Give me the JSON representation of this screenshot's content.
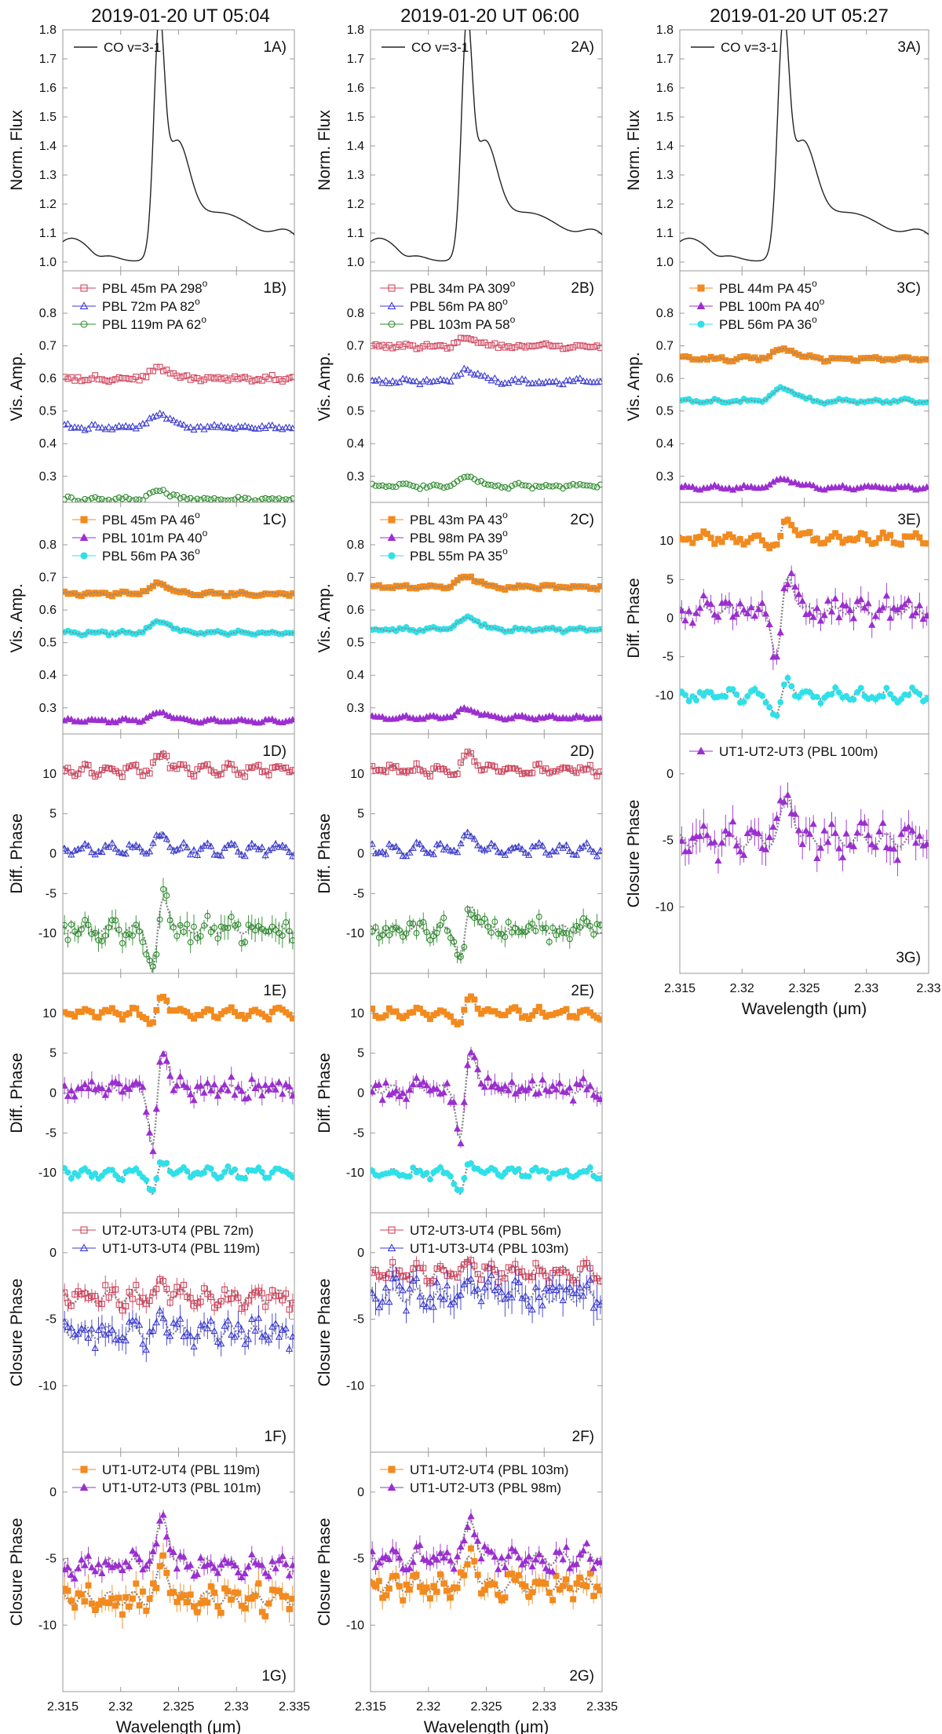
{
  "figure": {
    "col_titles": [
      "2019-01-20 UT 05:04",
      "2019-01-20 UT 06:00",
      "2019-01-20 UT 05:27"
    ],
    "xlabel": "Wavelength (μm)",
    "xticks": [
      "2.315",
      "2.32",
      "2.325",
      "2.33",
      "2.335"
    ],
    "xticks_col3": [
      "2.315",
      "2.32",
      "2.325",
      "2.33",
      "2.33"
    ]
  },
  "chart_data": [
    {
      "id": "1A",
      "type": "line",
      "ylabel": "Norm. Flux",
      "ylim": [
        0.97,
        1.8
      ],
      "yticks": [
        1.0,
        1.1,
        1.2,
        1.3,
        1.4,
        1.5,
        1.6,
        1.7,
        1.8
      ],
      "series": [
        {
          "name": "CO v=3-1",
          "color": "#222222",
          "marker": "none",
          "profile": "flux",
          "base": 1.0,
          "offset": 0
        }
      ]
    },
    {
      "id": "1B",
      "type": "scatter",
      "ylabel": "Vis. Amp.",
      "ylim": [
        0.22,
        0.93
      ],
      "yticks": [
        0.3,
        0.4,
        0.5,
        0.6,
        0.7,
        0.8
      ],
      "series": [
        {
          "name": "PBL 45m PA 298°",
          "color": "#d0455d",
          "marker": "open-square",
          "base": 0.6,
          "amp": 0.03,
          "noise": 0.006
        },
        {
          "name": "PBL 72m PA 82°",
          "color": "#3b3bd0",
          "marker": "open-triangle",
          "base": 0.45,
          "amp": 0.04,
          "noise": 0.006
        },
        {
          "name": "PBL 119m PA 62°",
          "color": "#2e8b2e",
          "marker": "open-circle",
          "base": 0.23,
          "amp": 0.025,
          "noise": 0.005
        }
      ]
    },
    {
      "id": "1C",
      "type": "scatter",
      "ylabel": "Vis. Amp.",
      "ylim": [
        0.22,
        0.93
      ],
      "yticks": [
        0.3,
        0.4,
        0.5,
        0.6,
        0.7,
        0.8
      ],
      "series": [
        {
          "name": "PBL 45m PA 46°",
          "color": "#f28a1e",
          "marker": "filled-square",
          "base": 0.65,
          "amp": 0.03,
          "noise": 0.004
        },
        {
          "name": "PBL 101m PA 40°",
          "color": "#9b2fcf",
          "marker": "filled-triangle",
          "base": 0.26,
          "amp": 0.025,
          "noise": 0.003
        },
        {
          "name": "PBL 56m PA 36°",
          "color": "#2fe0e8",
          "marker": "filled-circle",
          "base": 0.53,
          "amp": 0.035,
          "noise": 0.004
        }
      ]
    },
    {
      "id": "1D",
      "type": "scatter",
      "ylabel": "Diff. Phase",
      "ylim": [
        -15,
        15
      ],
      "yticks": [
        -10,
        -5,
        0,
        5,
        10
      ],
      "series": [
        {
          "name": "",
          "color": "#d0455d",
          "marker": "open-square",
          "base": 10.5,
          "dip": 0,
          "peak": 2,
          "noise": 0.4
        },
        {
          "name": "",
          "color": "#3b3bd0",
          "marker": "open-triangle",
          "base": 0.5,
          "dip": 0,
          "peak": 2,
          "noise": 0.4
        },
        {
          "name": "",
          "color": "#2e8b2e",
          "marker": "open-circle",
          "base": -9.5,
          "dip": -6,
          "peak": 4,
          "noise": 1.2
        }
      ]
    },
    {
      "id": "1E",
      "type": "scatter",
      "ylabel": "Diff. Phase",
      "ylim": [
        -15,
        15
      ],
      "yticks": [
        -10,
        -5,
        0,
        5,
        10
      ],
      "series": [
        {
          "name": "",
          "color": "#f28a1e",
          "marker": "filled-square",
          "base": 10,
          "dip": -1.5,
          "peak": 2,
          "noise": 0.3
        },
        {
          "name": "",
          "color": "#9b2fcf",
          "marker": "filled-triangle",
          "base": 0.5,
          "dip": -8,
          "peak": 5,
          "noise": 1.0
        },
        {
          "name": "",
          "color": "#2fe0e8",
          "marker": "filled-circle",
          "base": -10,
          "dip": -3,
          "peak": 1.5,
          "noise": 0.4
        }
      ]
    },
    {
      "id": "1F",
      "type": "scatter",
      "ylabel": "Closure Phase",
      "ylim": [
        -15,
        3
      ],
      "yticks": [
        -10,
        -5,
        0
      ],
      "series": [
        {
          "name": "UT2-UT3-UT4 (PBL 72m)",
          "color": "#d0455d",
          "marker": "open-square",
          "base": -3.3,
          "dip": 0,
          "peak": 0.8,
          "noise": 0.6
        },
        {
          "name": "UT1-UT3-UT4 (PBL 119m)",
          "color": "#3b3bd0",
          "marker": "open-triangle",
          "base": -6.0,
          "dip": 0,
          "peak": 1.0,
          "noise": 0.8
        }
      ]
    },
    {
      "id": "1G",
      "type": "scatter",
      "ylabel": "Closure Phase",
      "ylim": [
        -15,
        3
      ],
      "yticks": [
        -10,
        -5,
        0
      ],
      "series": [
        {
          "name": "UT1-UT2-UT4 (PBL 119m)",
          "color": "#f28a1e",
          "marker": "filled-square",
          "base": -8.0,
          "dip": 0,
          "peak": 2.5,
          "noise": 0.8
        },
        {
          "name": "UT1-UT2-UT3 (PBL 101m)",
          "color": "#9b2fcf",
          "marker": "filled-triangle",
          "base": -5.5,
          "dip": 0,
          "peak": 3.5,
          "noise": 0.6
        }
      ]
    },
    {
      "id": "2A",
      "type": "line",
      "ylabel": "Norm. Flux",
      "ylim": [
        0.97,
        1.8
      ],
      "yticks": [
        1.0,
        1.1,
        1.2,
        1.3,
        1.4,
        1.5,
        1.6,
        1.7,
        1.8
      ],
      "series": [
        {
          "name": "CO v=3-1",
          "color": "#222222",
          "marker": "none",
          "profile": "flux",
          "base": 1.0,
          "offset": 0
        }
      ]
    },
    {
      "id": "2B",
      "type": "scatter",
      "ylabel": "Vis. Amp.",
      "ylim": [
        0.22,
        0.93
      ],
      "yticks": [
        0.3,
        0.4,
        0.5,
        0.6,
        0.7,
        0.8
      ],
      "series": [
        {
          "name": "PBL 34m PA 309°",
          "color": "#d0455d",
          "marker": "open-square",
          "base": 0.7,
          "amp": 0.02,
          "noise": 0.006
        },
        {
          "name": "PBL 56m PA 80°",
          "color": "#3b3bd0",
          "marker": "open-triangle",
          "base": 0.59,
          "amp": 0.035,
          "noise": 0.006
        },
        {
          "name": "PBL 103m PA 58°",
          "color": "#2e8b2e",
          "marker": "open-circle",
          "base": 0.27,
          "amp": 0.03,
          "noise": 0.005
        }
      ]
    },
    {
      "id": "2C",
      "type": "scatter",
      "ylabel": "Vis. Amp.",
      "ylim": [
        0.22,
        0.93
      ],
      "yticks": [
        0.3,
        0.4,
        0.5,
        0.6,
        0.7,
        0.8
      ],
      "series": [
        {
          "name": "PBL 43m PA 43°",
          "color": "#f28a1e",
          "marker": "filled-square",
          "base": 0.67,
          "amp": 0.03,
          "noise": 0.004
        },
        {
          "name": "PBL 98m PA 39°",
          "color": "#9b2fcf",
          "marker": "filled-triangle",
          "base": 0.27,
          "amp": 0.025,
          "noise": 0.003
        },
        {
          "name": "PBL 55m PA 35°",
          "color": "#2fe0e8",
          "marker": "filled-circle",
          "base": 0.54,
          "amp": 0.035,
          "noise": 0.004
        }
      ]
    },
    {
      "id": "2D",
      "type": "scatter",
      "ylabel": "Diff. Phase",
      "ylim": [
        -15,
        15
      ],
      "yticks": [
        -10,
        -5,
        0,
        5,
        10
      ],
      "series": [
        {
          "name": "",
          "color": "#d0455d",
          "marker": "open-square",
          "base": 10.5,
          "dip": 0,
          "peak": 2,
          "noise": 0.4
        },
        {
          "name": "",
          "color": "#3b3bd0",
          "marker": "open-triangle",
          "base": 0.5,
          "dip": 0,
          "peak": 1.8,
          "noise": 0.4
        },
        {
          "name": "",
          "color": "#2e8b2e",
          "marker": "open-circle",
          "base": -9.5,
          "dip": -4.5,
          "peak": 3,
          "noise": 1.0
        }
      ]
    },
    {
      "id": "2E",
      "type": "scatter",
      "ylabel": "Diff. Phase",
      "ylim": [
        -15,
        15
      ],
      "yticks": [
        -10,
        -5,
        0,
        5,
        10
      ],
      "series": [
        {
          "name": "",
          "color": "#f28a1e",
          "marker": "filled-square",
          "base": 10,
          "dip": -1.5,
          "peak": 2,
          "noise": 0.3
        },
        {
          "name": "",
          "color": "#9b2fcf",
          "marker": "filled-triangle",
          "base": 0.5,
          "dip": -7,
          "peak": 5,
          "noise": 1.0
        },
        {
          "name": "",
          "color": "#2fe0e8",
          "marker": "filled-circle",
          "base": -10,
          "dip": -3,
          "peak": 1.5,
          "noise": 0.4
        }
      ]
    },
    {
      "id": "2F",
      "type": "scatter",
      "ylabel": "Closure Phase",
      "ylim": [
        -15,
        3
      ],
      "yticks": [
        -10,
        -5,
        0
      ],
      "series": [
        {
          "name": "UT2-UT3-UT4 (PBL 56m)",
          "color": "#d0455d",
          "marker": "open-square",
          "base": -1.5,
          "dip": 0,
          "peak": 0.6,
          "noise": 0.4
        },
        {
          "name": "UT1-UT3-UT4 (PBL 103m)",
          "color": "#3b3bd0",
          "marker": "open-triangle",
          "base": -3.2,
          "dip": 0,
          "peak": 1.0,
          "noise": 1.0
        }
      ]
    },
    {
      "id": "2G",
      "type": "scatter",
      "ylabel": "Closure Phase",
      "ylim": [
        -15,
        3
      ],
      "yticks": [
        -10,
        -5,
        0
      ],
      "series": [
        {
          "name": "UT1-UT2-UT4 (PBL 103m)",
          "color": "#f28a1e",
          "marker": "filled-square",
          "base": -7.0,
          "dip": 0,
          "peak": 2.0,
          "noise": 0.7
        },
        {
          "name": "UT1-UT2-UT3 (PBL 98m)",
          "color": "#9b2fcf",
          "marker": "filled-triangle",
          "base": -5.0,
          "dip": 0,
          "peak": 2.8,
          "noise": 0.6
        }
      ]
    },
    {
      "id": "3A",
      "type": "line",
      "ylabel": "Norm. Flux",
      "ylim": [
        0.97,
        1.8
      ],
      "yticks": [
        1.0,
        1.1,
        1.2,
        1.3,
        1.4,
        1.5,
        1.6,
        1.7,
        1.8
      ],
      "series": [
        {
          "name": "CO v=3-1",
          "color": "#222222",
          "marker": "none",
          "profile": "flux",
          "base": 1.0,
          "offset": 0
        }
      ]
    },
    {
      "id": "3C",
      "type": "scatter",
      "ylabel": "Vis. Amp.",
      "ylim": [
        0.22,
        0.93
      ],
      "yticks": [
        0.3,
        0.4,
        0.5,
        0.6,
        0.7,
        0.8
      ],
      "series": [
        {
          "name": "PBL 44m PA 45°",
          "color": "#f28a1e",
          "marker": "filled-square",
          "base": 0.66,
          "amp": 0.03,
          "noise": 0.004
        },
        {
          "name": "PBL 100m PA 40°",
          "color": "#9b2fcf",
          "marker": "filled-triangle",
          "base": 0.265,
          "amp": 0.025,
          "noise": 0.003
        },
        {
          "name": "PBL 56m PA 36°",
          "color": "#2fe0e8",
          "marker": "filled-circle",
          "base": 0.53,
          "amp": 0.04,
          "noise": 0.004
        }
      ]
    },
    {
      "id": "3E",
      "type": "scatter",
      "ylabel": "Diff. Phase",
      "ylim": [
        -15,
        15
      ],
      "yticks": [
        -10,
        -5,
        0,
        5,
        10
      ],
      "series": [
        {
          "name": "",
          "color": "#f28a1e",
          "marker": "filled-square",
          "base": 10.3,
          "dip": -1.5,
          "peak": 2.5,
          "noise": 0.4
        },
        {
          "name": "",
          "color": "#9b2fcf",
          "marker": "filled-triangle",
          "base": 1.0,
          "dip": -7,
          "peak": 4.5,
          "noise": 1.3
        },
        {
          "name": "",
          "color": "#2fe0e8",
          "marker": "filled-circle",
          "base": -10,
          "dip": -3,
          "peak": 1.8,
          "noise": 0.5
        }
      ]
    },
    {
      "id": "3G",
      "type": "scatter",
      "ylabel": "Closure Phase",
      "ylim": [
        -15,
        3
      ],
      "yticks": [
        -10,
        -5,
        0
      ],
      "series": [
        {
          "name": "UT1-UT2-UT3 (PBL 100m)",
          "color": "#9b2fcf",
          "marker": "filled-triangle",
          "base": -5.0,
          "dip": 0,
          "peak": 3.2,
          "noise": 1.0
        }
      ]
    }
  ]
}
